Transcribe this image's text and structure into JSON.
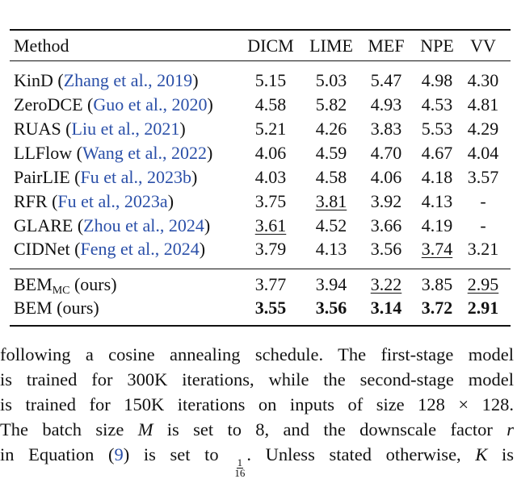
{
  "table": {
    "header": [
      "Method",
      "DICM",
      "LIME",
      "MEF",
      "NPE",
      "VV"
    ],
    "groups": [
      [
        {
          "method": [
            {
              "text": "KinD ("
            },
            {
              "text": "Zhang et al., 2019",
              "style": "cite"
            },
            {
              "text": ")"
            }
          ],
          "scores": [
            "5.15",
            "5.03",
            "5.47",
            "4.98",
            "4.30"
          ]
        },
        {
          "method": [
            {
              "text": "ZeroDCE ("
            },
            {
              "text": "Guo et al., 2020",
              "style": "cite"
            },
            {
              "text": ")"
            }
          ],
          "scores": [
            "4.58",
            "5.82",
            "4.93",
            "4.53",
            "4.81"
          ]
        },
        {
          "method": [
            {
              "text": "RUAS ("
            },
            {
              "text": "Liu et al., 2021",
              "style": "cite"
            },
            {
              "text": ")"
            }
          ],
          "scores": [
            "5.21",
            "4.26",
            "3.83",
            "5.53",
            "4.29"
          ]
        },
        {
          "method": [
            {
              "text": "LLFlow ("
            },
            {
              "text": "Wang et al., 2022",
              "style": "cite"
            },
            {
              "text": ")"
            }
          ],
          "scores": [
            "4.06",
            "4.59",
            "4.70",
            "4.67",
            "4.04"
          ]
        },
        {
          "method": [
            {
              "text": "PairLIE ("
            },
            {
              "text": "Fu et al., 2023b",
              "style": "cite"
            },
            {
              "text": ")"
            }
          ],
          "scores": [
            "4.03",
            "4.58",
            "4.06",
            "4.18",
            "3.57"
          ]
        },
        {
          "method": [
            {
              "text": "RFR ("
            },
            {
              "text": "Fu et al., 2023a",
              "style": "cite"
            },
            {
              "text": ")"
            }
          ],
          "scores": [
            "3.75",
            "3.81",
            "3.92",
            "4.13",
            "-"
          ],
          "underline": [
            1
          ]
        },
        {
          "method": [
            {
              "text": "GLARE ("
            },
            {
              "text": "Zhou et al., 2024",
              "style": "cite"
            },
            {
              "text": ")"
            }
          ],
          "scores": [
            "3.61",
            "4.52",
            "3.66",
            "4.19",
            "-"
          ],
          "underline": [
            0
          ]
        },
        {
          "method": [
            {
              "text": "CIDNet ("
            },
            {
              "text": "Feng et al., 2024",
              "style": "cite"
            },
            {
              "text": ")"
            }
          ],
          "scores": [
            "3.79",
            "4.13",
            "3.56",
            "3.74",
            "3.21"
          ],
          "underline": [
            3
          ]
        }
      ],
      [
        {
          "method": [
            {
              "text": "BEM"
            },
            {
              "text": "MC",
              "style": "sub"
            },
            {
              "text": " (ours)"
            }
          ],
          "scores": [
            "3.77",
            "3.94",
            "3.22",
            "3.85",
            "2.95"
          ],
          "underline": [
            2,
            4
          ]
        },
        {
          "method": [
            {
              "text": "BEM (ours)"
            }
          ],
          "scores": [
            "3.55",
            "3.56",
            "3.14",
            "3.72",
            "2.91"
          ],
          "bold": true
        }
      ]
    ]
  },
  "paragraph": {
    "lines": [
      [
        {
          "text": "following a cosine annealing schedule. The first-stage model"
        }
      ],
      [
        {
          "text": "is trained for 300K iterations, while the second-stage model"
        }
      ],
      [
        {
          "text": "is trained for 150K iterations on inputs of size "
        },
        {
          "text": "128 × 128",
          "style": "math"
        },
        {
          "text": "."
        }
      ],
      [
        {
          "text": "The batch size "
        },
        {
          "text": "M",
          "style": "math-italic"
        },
        {
          "text": " is set to 8, and the downscale factor "
        },
        {
          "text": "r",
          "style": "math-italic"
        }
      ],
      [
        {
          "text": "in Equation ("
        },
        {
          "text": "9",
          "style": "cite"
        },
        {
          "text": ") is set to "
        },
        {
          "num": "1",
          "den": "16",
          "style": "frac"
        },
        {
          "text": ". Unless stated otherwise, "
        },
        {
          "text": "K",
          "style": "math-italic"
        },
        {
          "text": " is"
        }
      ]
    ]
  }
}
